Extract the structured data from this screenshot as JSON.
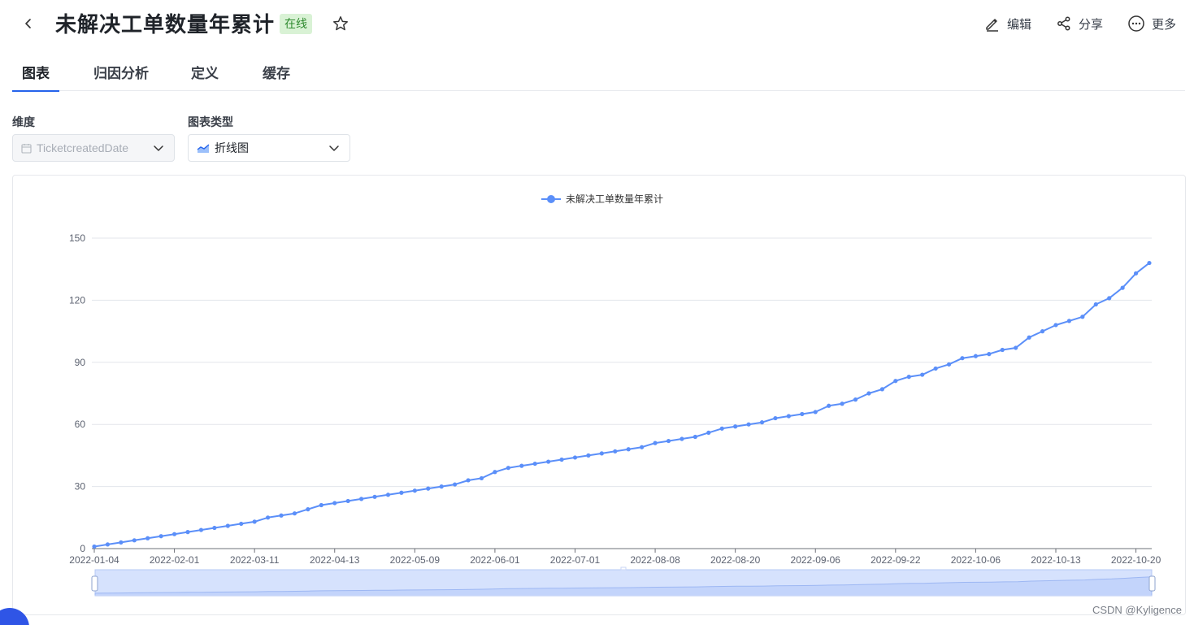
{
  "header": {
    "title": "未解决工单数量年累计",
    "status": "在线",
    "actions": [
      {
        "label": "编辑",
        "icon": "pencil-icon"
      },
      {
        "label": "分享",
        "icon": "share-icon"
      },
      {
        "label": "更多",
        "icon": "more-icon"
      }
    ]
  },
  "tabs": [
    {
      "label": "图表",
      "active": true
    },
    {
      "label": "归因分析",
      "active": false
    },
    {
      "label": "定义",
      "active": false
    },
    {
      "label": "缓存",
      "active": false
    }
  ],
  "controls": {
    "dimension": {
      "label": "维度",
      "value": "TicketcreatedDate"
    },
    "chart_type": {
      "label": "图表类型",
      "value": "折线图"
    }
  },
  "colors": {
    "accent": "#2563eb",
    "series": "#5b8ff9",
    "slider_fill": "#d6e2fd"
  },
  "chart_data": {
    "type": "line",
    "legend_position": "top-center",
    "grid": true,
    "ylim": [
      0,
      150
    ],
    "yticks": [
      0,
      30,
      60,
      90,
      120,
      150
    ],
    "xtick_labels": [
      "2022-01-04",
      "2022-02-01",
      "2022-03-11",
      "2022-04-13",
      "2022-05-09",
      "2022-06-01",
      "2022-07-01",
      "2022-08-08",
      "2022-08-20",
      "2022-09-06",
      "2022-09-22",
      "2022-10-06",
      "2022-10-13",
      "2022-10-20"
    ],
    "xtick_indices": [
      0,
      6,
      12,
      18,
      24,
      30,
      36,
      42,
      48,
      54,
      60,
      66,
      72,
      78
    ],
    "series": [
      {
        "name": "未解决工单数量年累计",
        "values": [
          1,
          2,
          3,
          4,
          5,
          6,
          7,
          8,
          9,
          10,
          11,
          12,
          13,
          15,
          16,
          17,
          19,
          21,
          22,
          23,
          24,
          25,
          26,
          27,
          28,
          29,
          30,
          31,
          33,
          34,
          37,
          39,
          40,
          41,
          42,
          43,
          44,
          45,
          46,
          47,
          48,
          49,
          51,
          52,
          53,
          54,
          56,
          58,
          59,
          60,
          61,
          63,
          64,
          65,
          66,
          69,
          70,
          72,
          75,
          77,
          81,
          83,
          84,
          87,
          89,
          92,
          93,
          94,
          96,
          97,
          102,
          105,
          108,
          110,
          112,
          118,
          121,
          126,
          133,
          138
        ]
      }
    ]
  }
}
